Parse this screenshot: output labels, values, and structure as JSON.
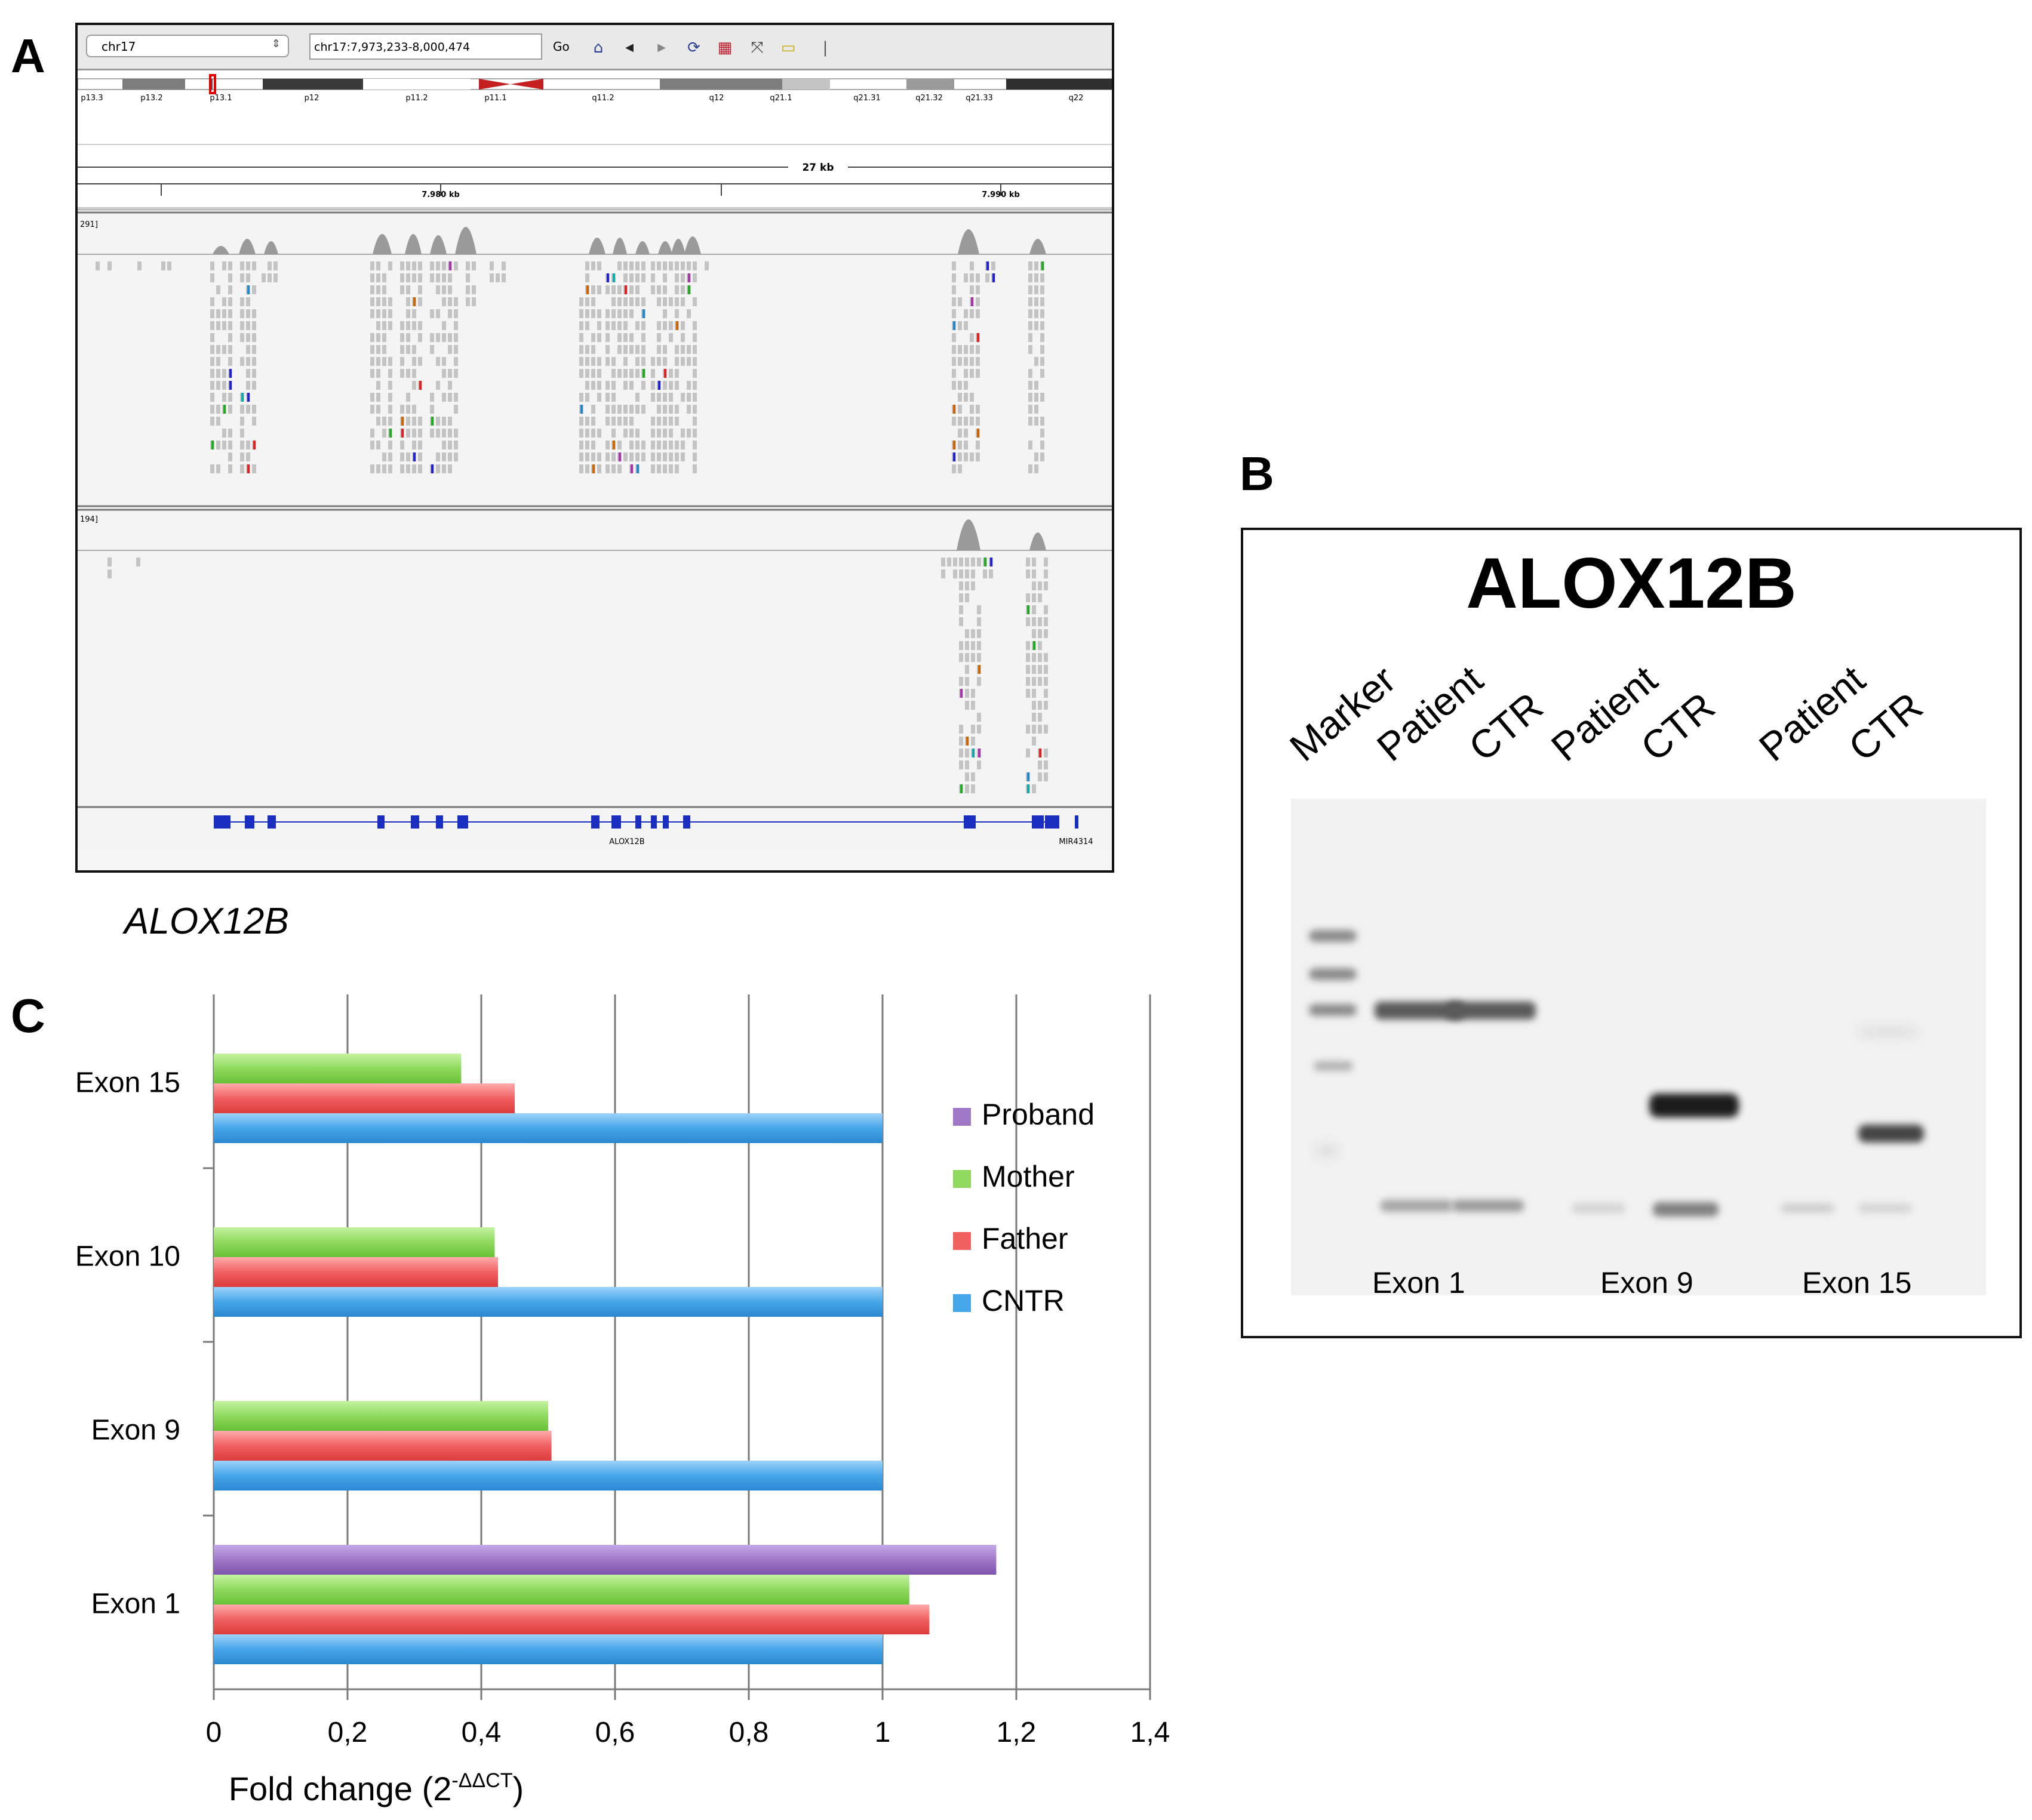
{
  "panels": {
    "a": "A",
    "b": "B",
    "c": "C"
  },
  "igv": {
    "chromosome": "chr17",
    "locus": "chr17:7,973,233-8,000,474",
    "go_label": "Go",
    "toolbar_icons": [
      "home-icon",
      "back-icon",
      "forward-icon",
      "refresh-icon",
      "region-icon",
      "resize-icon",
      "popup-icon"
    ],
    "bands": [
      "p13.3",
      "p13.2",
      "p13.1",
      "p12",
      "p11.2",
      "p11.1",
      "q11.2",
      "q12",
      "q21.1",
      "q21.31",
      "q21.32",
      "q21.33",
      "q22"
    ],
    "span_label": "27 kb",
    "tick_left": "7.980 kb",
    "tick_right": "7.990 kb",
    "track1_scale": "291]",
    "track2_scale": "194]",
    "gene_label": "ALOX12B",
    "mir_label": "MIR4314"
  },
  "gene_caption": "ALOX12B",
  "gel": {
    "title": "ALOX12B",
    "lanes": [
      "Marker",
      "Patient",
      "CTR",
      "Patient",
      "CTR",
      "Patient",
      "CTR"
    ],
    "exons": [
      "Exon 1",
      "Exon 9",
      "Exon 15"
    ]
  },
  "chart_data": {
    "type": "bar",
    "orientation": "horizontal",
    "categories": [
      "Exon 15",
      "Exon 10",
      "Exon 9",
      "Exon 1"
    ],
    "series": [
      {
        "name": "Proband",
        "color": "#a078c8",
        "values": [
          null,
          null,
          null,
          1.17
        ]
      },
      {
        "name": "Mother",
        "color": "#8fd95e",
        "values": [
          0.37,
          0.42,
          0.5,
          1.04
        ]
      },
      {
        "name": "Father",
        "color": "#f06060",
        "values": [
          0.45,
          0.425,
          0.505,
          1.07
        ]
      },
      {
        "name": "CNTR",
        "color": "#46a6ea",
        "values": [
          1.0,
          1.0,
          1.0,
          1.0
        ]
      }
    ],
    "xlim": [
      0,
      1.4
    ],
    "xticks": [
      "0",
      "0,2",
      "0,4",
      "0,6",
      "0,8",
      "1",
      "1,2",
      "1,4"
    ],
    "xlabel": "Fold change (2",
    "xlabel_superscript": "-ΔΔCT",
    "xlabel_close": ")",
    "grid": "vertical"
  }
}
